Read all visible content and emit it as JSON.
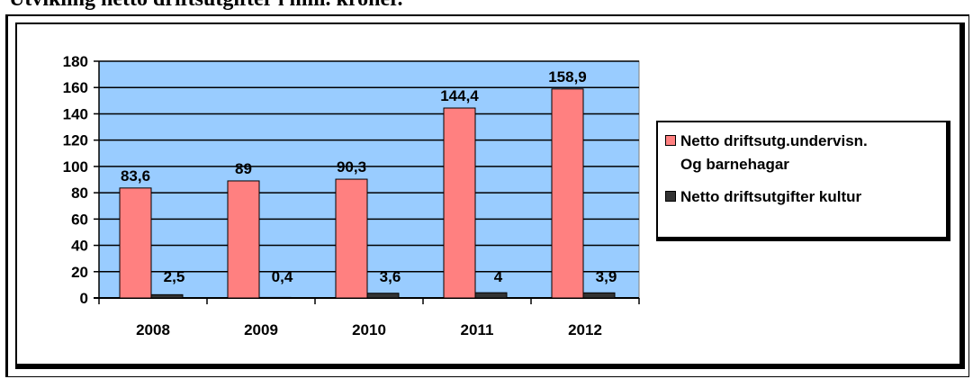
{
  "page": {
    "title": "Utvikling netto driftsutgifter i mill. kroner."
  },
  "colors": {
    "plot_bg": "#99CCFF",
    "series1": "#FF8080",
    "series2": "#333333",
    "grid": "#000000"
  },
  "chart_data": {
    "type": "bar",
    "title": "",
    "xlabel": "",
    "ylabel": "",
    "ylim": [
      0,
      180
    ],
    "yticks": [
      0,
      20,
      40,
      60,
      80,
      100,
      120,
      140,
      160,
      180
    ],
    "grid": true,
    "legend_position": "right",
    "categories": [
      "2008",
      "2009",
      "2010",
      "2011",
      "2012"
    ],
    "series": [
      {
        "name": "Netto driftsutg.undervisn. Og barnehagar",
        "values": [
          83.6,
          89,
          90.3,
          144.4,
          158.9
        ],
        "labels": [
          "83,6",
          "89",
          "90,3",
          "144,4",
          "158,9"
        ]
      },
      {
        "name": "Netto driftsutgifter kultur",
        "values": [
          2.5,
          0.4,
          3.6,
          4,
          3.9
        ],
        "labels": [
          "2,5",
          "0,4",
          "3,6",
          "4",
          "3,9"
        ]
      }
    ]
  },
  "legend": {
    "item1_line1": "Netto driftsutg.undervisn.",
    "item1_line2": "Og barnehagar",
    "item2": "Netto driftsutgifter kultur"
  }
}
